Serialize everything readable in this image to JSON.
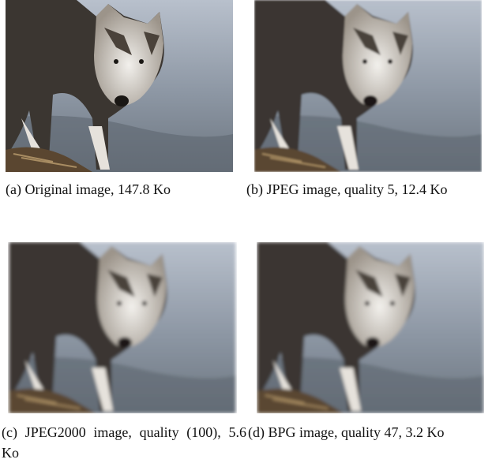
{
  "subfigures": [
    {
      "caption": "(a) Original image, 147.8 Ko"
    },
    {
      "caption": "(b) JPEG image, quality 5, 12.4 Ko"
    },
    {
      "caption": "(c) JPEG2000 image, quality (100), 5.6 Ko"
    },
    {
      "caption": "(d) BPG image, quality 47, 3.2 Ko"
    }
  ]
}
